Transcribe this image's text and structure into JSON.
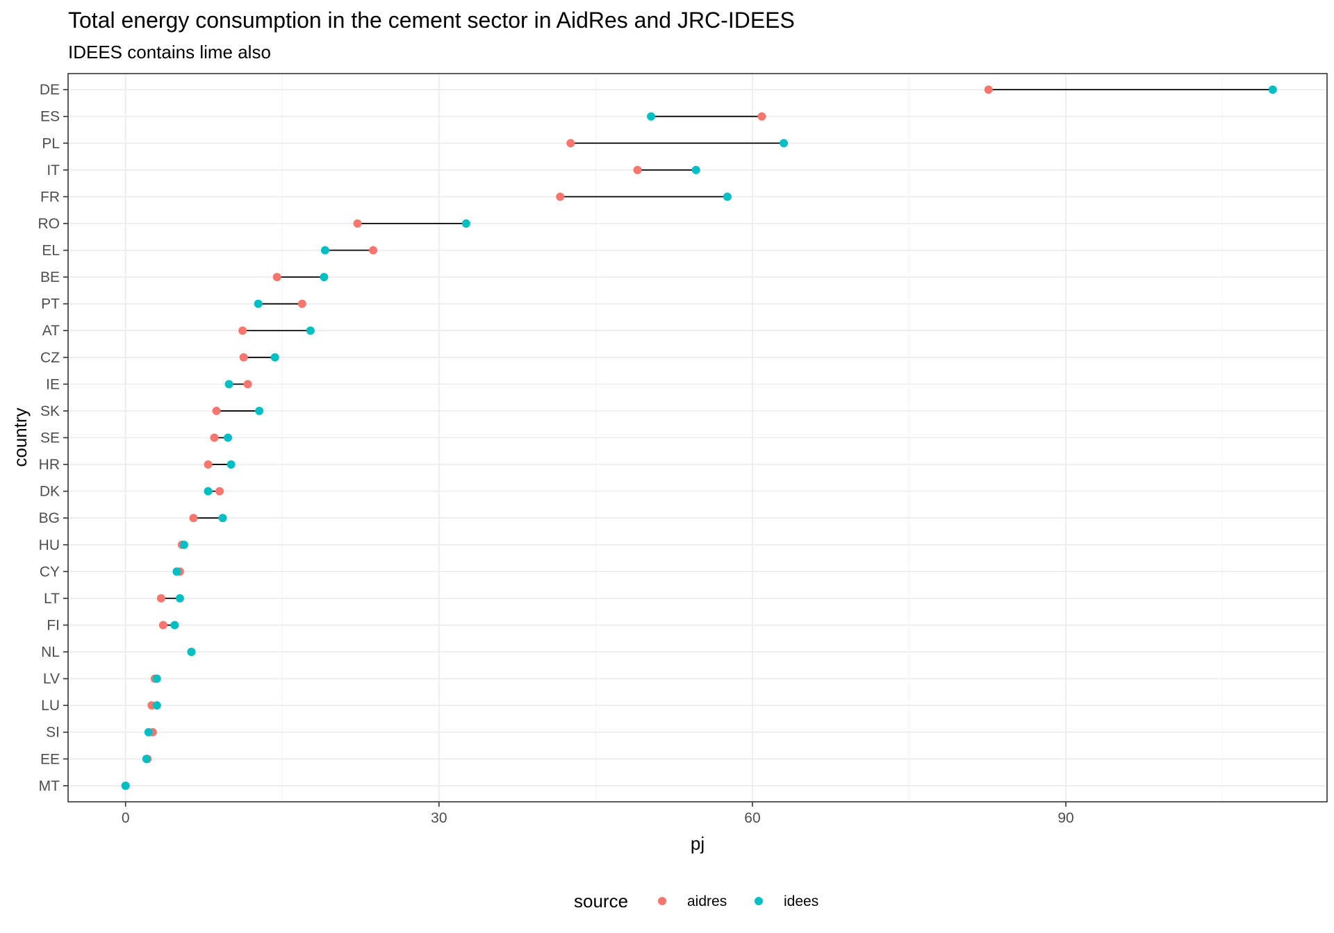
{
  "chart_data": {
    "type": "dumbbell",
    "title": "Total energy consumption in the cement sector in AidRes and JRC-IDEES",
    "subtitle": "IDEES contains lime also",
    "xlabel": "pj",
    "ylabel": "country",
    "xlim": [
      -5.5,
      115
    ],
    "x_ticks": [
      0,
      30,
      60,
      90
    ],
    "x_minor_ticks": [
      15,
      45,
      75,
      105
    ],
    "grid": true,
    "legend": {
      "position": "bottom",
      "title": "source",
      "entries": [
        {
          "name": "aidres",
          "color": "#F8766D"
        },
        {
          "name": "idees",
          "color": "#00BFC4"
        }
      ]
    },
    "categories": [
      "DE",
      "ES",
      "PL",
      "IT",
      "FR",
      "RO",
      "EL",
      "BE",
      "PT",
      "AT",
      "CZ",
      "IE",
      "SK",
      "SE",
      "HR",
      "DK",
      "BG",
      "HU",
      "CY",
      "LT",
      "FI",
      "NL",
      "LV",
      "LU",
      "SI",
      "EE",
      "MT"
    ],
    "series": [
      {
        "name": "aidres",
        "color": "#F8766D",
        "values": [
          82.6,
          60.9,
          42.6,
          49.0,
          41.6,
          22.2,
          23.7,
          14.5,
          16.9,
          11.2,
          11.3,
          11.7,
          8.7,
          8.5,
          7.9,
          9.0,
          6.5,
          5.4,
          5.2,
          3.4,
          3.6,
          null,
          2.8,
          2.5,
          2.6,
          2.1,
          0.0
        ]
      },
      {
        "name": "idees",
        "color": "#00BFC4",
        "values": [
          109.8,
          50.3,
          63.0,
          54.6,
          57.6,
          32.6,
          19.1,
          19.0,
          12.7,
          17.7,
          14.3,
          9.9,
          12.8,
          9.8,
          10.1,
          7.9,
          9.3,
          5.6,
          4.9,
          5.2,
          4.7,
          6.3,
          3.0,
          3.0,
          2.2,
          2.0,
          0.0
        ]
      }
    ]
  }
}
